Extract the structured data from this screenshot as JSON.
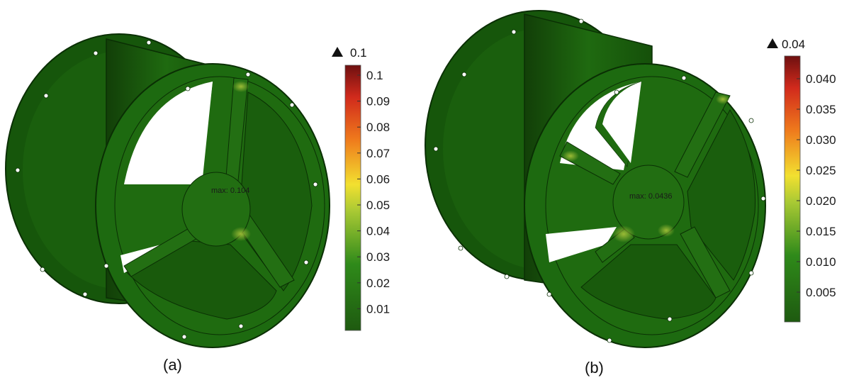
{
  "panels": [
    {
      "caption": "(a)",
      "max_label": "max: 0.104",
      "colorbar": {
        "max_marker": "0.1",
        "ticks": [
          "0.1",
          "0.09",
          "0.08",
          "0.07",
          "0.06",
          "0.05",
          "0.04",
          "0.03",
          "0.02",
          "0.01"
        ]
      }
    },
    {
      "caption": "(b)",
      "max_label": "max: 0.0436",
      "colorbar": {
        "max_marker": "0.04",
        "ticks": [
          "0.040",
          "0.035",
          "0.030",
          "0.025",
          "0.020",
          "0.015",
          "0.010",
          "0.005"
        ]
      }
    }
  ],
  "icons": {
    "max_marker": "up-triangle-icon"
  },
  "colors": {
    "body_green": "#1f6b10",
    "dark_green": "#0f4006",
    "scale_low": "#1e6a14",
    "scale_mid": "#f2e030",
    "scale_high": "#7a1212"
  }
}
